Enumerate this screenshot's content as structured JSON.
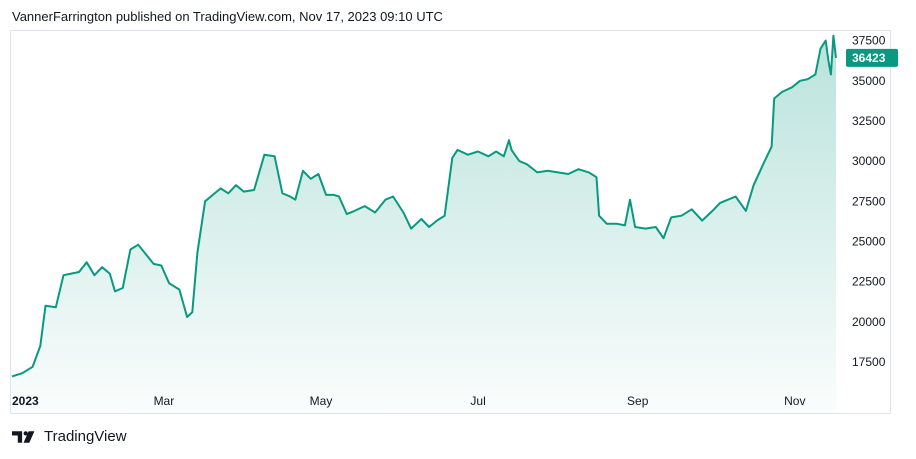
{
  "header": {
    "text": "VannerFarrington published on TradingView.com, Nov 17, 2023 09:10 UTC"
  },
  "brand": {
    "name": "TradingView"
  },
  "colors": {
    "line": "#089981",
    "fill_top": "#089981",
    "label_bg": "#089981",
    "grid": "#e0e3eb"
  },
  "chart_data": {
    "type": "area",
    "title": "",
    "xlabel": "",
    "ylabel": "",
    "grid": false,
    "ylim": [
      16500,
      38100
    ],
    "y_ticks": [
      17500,
      20000,
      22500,
      25000,
      27500,
      30000,
      32500,
      35000,
      37500
    ],
    "x_tick_labels": [
      {
        "label": "2023",
        "date": "2023-01-01",
        "bold": true
      },
      {
        "label": "Mar",
        "date": "2023-03-01",
        "bold": false
      },
      {
        "label": "May",
        "date": "2023-05-01",
        "bold": false
      },
      {
        "label": "Jul",
        "date": "2023-07-01",
        "bold": false
      },
      {
        "label": "Sep",
        "date": "2023-09-01",
        "bold": false
      },
      {
        "label": "Nov",
        "date": "2023-11-01",
        "bold": false
      }
    ],
    "x_range": [
      "2023-01-01",
      "2023-11-17"
    ],
    "last_value": {
      "label": "36423",
      "value": 36423
    },
    "series": [
      {
        "x": [
          "2023-01-01",
          "2023-01-05",
          "2023-01-09",
          "2023-01-12",
          "2023-01-14",
          "2023-01-18",
          "2023-01-21",
          "2023-01-24",
          "2023-01-27",
          "2023-01-30",
          "2023-02-02",
          "2023-02-05",
          "2023-02-08",
          "2023-02-10",
          "2023-02-13",
          "2023-02-16",
          "2023-02-19",
          "2023-02-22",
          "2023-02-25",
          "2023-02-28",
          "2023-03-03",
          "2023-03-07",
          "2023-03-10",
          "2023-03-12",
          "2023-03-14",
          "2023-03-17",
          "2023-03-20",
          "2023-03-23",
          "2023-03-26",
          "2023-03-29",
          "2023-04-01",
          "2023-04-05",
          "2023-04-09",
          "2023-04-13",
          "2023-04-16",
          "2023-04-19",
          "2023-04-21",
          "2023-04-24",
          "2023-04-27",
          "2023-04-30",
          "2023-05-03",
          "2023-05-06",
          "2023-05-08",
          "2023-05-11",
          "2023-05-14",
          "2023-05-18",
          "2023-05-22",
          "2023-05-26",
          "2023-05-29",
          "2023-06-02",
          "2023-06-05",
          "2023-06-09",
          "2023-06-12",
          "2023-06-15",
          "2023-06-18",
          "2023-06-21",
          "2023-06-23",
          "2023-06-27",
          "2023-07-01",
          "2023-07-05",
          "2023-07-08",
          "2023-07-11",
          "2023-07-13",
          "2023-07-14",
          "2023-07-17",
          "2023-07-20",
          "2023-07-24",
          "2023-07-28",
          "2023-08-01",
          "2023-08-05",
          "2023-08-09",
          "2023-08-13",
          "2023-08-16",
          "2023-08-17",
          "2023-08-20",
          "2023-08-24",
          "2023-08-27",
          "2023-08-29",
          "2023-08-31",
          "2023-09-04",
          "2023-09-08",
          "2023-09-11",
          "2023-09-14",
          "2023-09-18",
          "2023-09-22",
          "2023-09-26",
          "2023-09-30",
          "2023-10-03",
          "2023-10-06",
          "2023-10-09",
          "2023-10-13",
          "2023-10-16",
          "2023-10-20",
          "2023-10-23",
          "2023-10-24",
          "2023-10-27",
          "2023-10-31",
          "2023-11-03",
          "2023-11-06",
          "2023-11-09",
          "2023-11-11",
          "2023-11-13",
          "2023-11-14",
          "2023-11-15",
          "2023-11-16",
          "2023-11-17"
        ],
        "values": [
          16600,
          16800,
          17200,
          18500,
          21000,
          20900,
          22900,
          23000,
          23100,
          23700,
          22900,
          23400,
          23000,
          21900,
          22100,
          24500,
          24800,
          24200,
          23600,
          23500,
          22400,
          22000,
          20300,
          20600,
          24300,
          27500,
          27900,
          28300,
          28000,
          28500,
          28100,
          28200,
          30400,
          30300,
          28000,
          27800,
          27600,
          29400,
          28900,
          29200,
          27900,
          27900,
          27800,
          26700,
          26900,
          27200,
          26800,
          27600,
          27800,
          26800,
          25800,
          26400,
          25900,
          26300,
          26600,
          30200,
          30700,
          30400,
          30600,
          30300,
          30600,
          30300,
          31300,
          30700,
          30000,
          29800,
          29300,
          29400,
          29300,
          29200,
          29500,
          29300,
          29000,
          26600,
          26100,
          26100,
          26000,
          27600,
          25900,
          25800,
          25900,
          25200,
          26500,
          26600,
          27000,
          26300,
          26900,
          27400,
          27600,
          27800,
          26900,
          28500,
          29900,
          30900,
          33900,
          34300,
          34600,
          35000,
          35100,
          35400,
          37000,
          37500,
          36300,
          35400,
          37800,
          36423
        ]
      }
    ]
  }
}
